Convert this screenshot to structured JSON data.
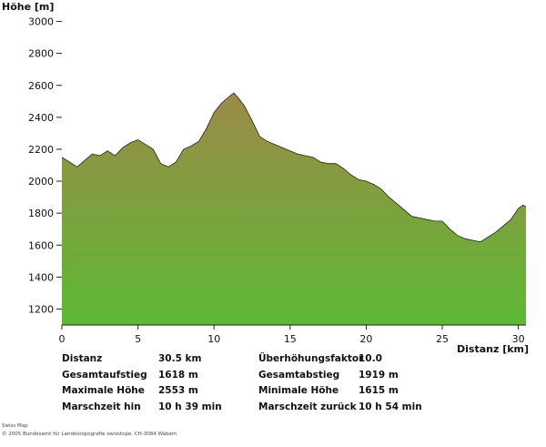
{
  "chart_data": {
    "type": "area",
    "ylabel": "Höhe [m]",
    "xlabel": "Distanz [km]",
    "xlim": [
      0,
      30.5
    ],
    "ylim": [
      1100,
      3100
    ],
    "x_ticks": [
      0,
      5,
      10,
      15,
      20,
      25,
      30
    ],
    "y_ticks": [
      1200,
      1400,
      1600,
      1800,
      2000,
      2200,
      2400,
      2600,
      2800,
      3000
    ],
    "grid": false,
    "fill_top_color": "#9c8a47",
    "fill_bottom_color": "#5db935",
    "x": [
      0,
      0.5,
      1,
      1.5,
      2,
      2.5,
      3,
      3.5,
      4,
      4.5,
      5,
      5.5,
      6,
      6.5,
      7,
      7.5,
      8,
      8.5,
      9,
      9.5,
      10,
      10.5,
      11,
      11.3,
      11.6,
      12,
      12.5,
      13,
      13.5,
      14,
      14.5,
      15,
      15.5,
      16,
      16.5,
      17,
      17.5,
      18,
      18.5,
      19,
      19.5,
      20,
      20.5,
      21,
      21.5,
      22,
      22.5,
      23,
      23.5,
      24,
      24.5,
      25,
      25.5,
      26,
      26.5,
      27,
      27.5,
      28,
      28.5,
      29,
      29.5,
      30,
      30.3,
      30.5
    ],
    "y": [
      2150,
      2120,
      2090,
      2130,
      2170,
      2160,
      2190,
      2160,
      2210,
      2240,
      2260,
      2230,
      2200,
      2110,
      2090,
      2120,
      2200,
      2220,
      2250,
      2330,
      2430,
      2490,
      2530,
      2553,
      2520,
      2470,
      2380,
      2280,
      2250,
      2230,
      2210,
      2190,
      2170,
      2160,
      2150,
      2120,
      2110,
      2110,
      2080,
      2040,
      2010,
      2000,
      1980,
      1950,
      1900,
      1860,
      1820,
      1780,
      1770,
      1760,
      1750,
      1750,
      1700,
      1660,
      1640,
      1630,
      1620,
      1650,
      1680,
      1720,
      1760,
      1830,
      1850,
      1840
    ]
  },
  "stats_left": [
    {
      "label": "Distanz",
      "value": "30.5 km"
    },
    {
      "label": "Gesamtaufstieg",
      "value": "1618 m"
    },
    {
      "label": "Maximale Höhe",
      "value": "2553 m"
    },
    {
      "label": "Marschzeit hin",
      "value": "10 h 39 min"
    }
  ],
  "stats_right": [
    {
      "label": "Überhöhungsfaktor",
      "value": "10.0"
    },
    {
      "label": "Gesamtabstieg",
      "value": "1919 m"
    },
    {
      "label": "Minimale Höhe",
      "value": "1615 m"
    },
    {
      "label": "Marschzeit zurück",
      "value": "10 h 54 min"
    }
  ],
  "credit": {
    "line1": "Swiss Map",
    "line2": "© 2005 Bundesamt für Landestopografie swisstopo, CH-3084 Wabern"
  }
}
